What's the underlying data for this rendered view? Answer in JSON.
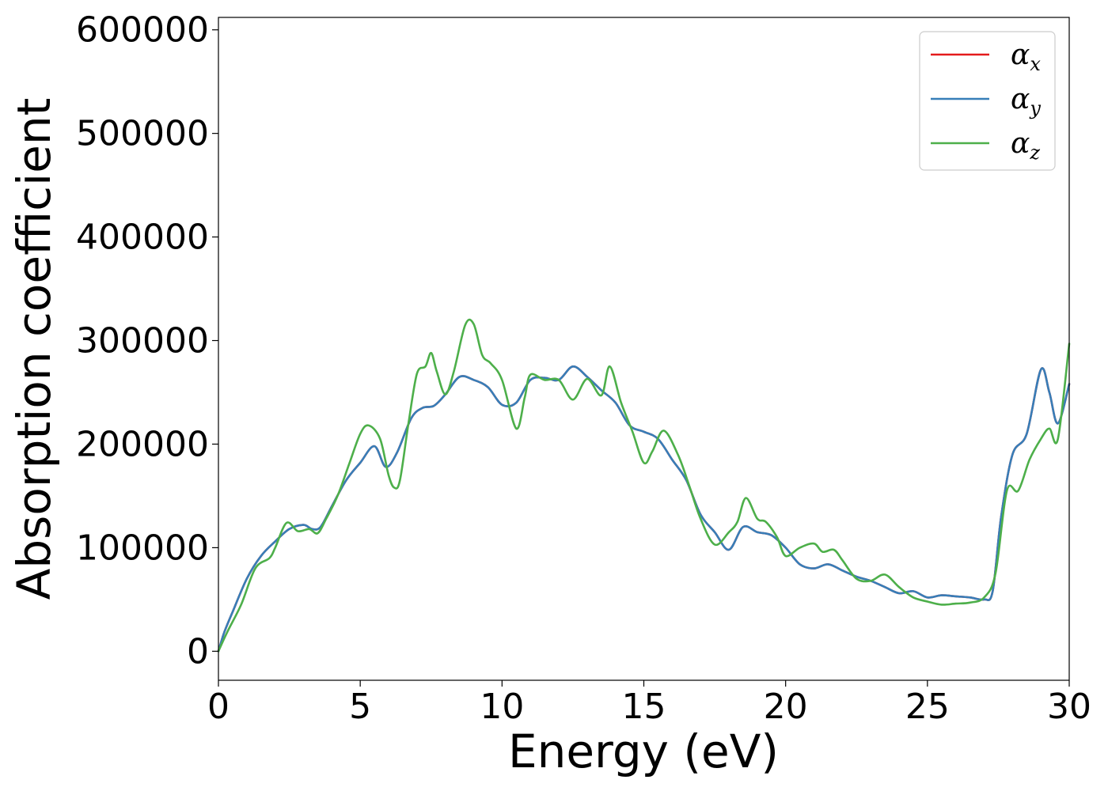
{
  "chart_data": {
    "type": "line",
    "xlabel": "Energy (eV)",
    "ylabel": "Absorption coefficient",
    "xlim": [
      0,
      30
    ],
    "ylim": [
      -28000,
      612000
    ],
    "xticks": [
      0,
      5,
      10,
      15,
      20,
      25,
      30
    ],
    "yticks": [
      0,
      100000,
      200000,
      300000,
      400000,
      500000,
      600000
    ],
    "grid": false,
    "legend_position": "top-right",
    "series": [
      {
        "name": "αx",
        "legend_symbol": "α",
        "legend_subscript": "x",
        "color": "#e41a1c",
        "x": [
          0,
          0.2,
          0.5,
          1.0,
          1.5,
          2.0,
          2.5,
          3.0,
          3.3,
          3.6,
          4.0,
          4.5,
          5.0,
          5.5,
          5.9,
          6.3,
          6.8,
          7.2,
          7.6,
          8.0,
          8.5,
          9.0,
          9.5,
          10.0,
          10.5,
          11.0,
          11.5,
          12.0,
          12.5,
          13.0,
          13.5,
          14.0,
          14.5,
          15.0,
          15.5,
          16.0,
          16.5,
          17.0,
          17.5,
          18.0,
          18.5,
          19.0,
          19.5,
          20.0,
          20.5,
          21.0,
          21.5,
          22.0,
          22.5,
          23.0,
          23.5,
          24.0,
          24.5,
          25.0,
          25.5,
          26.0,
          26.5,
          27.0,
          27.3,
          27.6,
          28.0,
          28.5,
          29.0,
          29.3,
          29.6,
          30.0
        ],
        "y": [
          0,
          18000,
          38000,
          70000,
          92000,
          106000,
          118000,
          122000,
          118000,
          120000,
          140000,
          165000,
          182000,
          198000,
          178000,
          192000,
          225000,
          235000,
          237000,
          248000,
          265000,
          262000,
          255000,
          238000,
          240000,
          262000,
          264000,
          262000,
          275000,
          265000,
          252000,
          240000,
          218000,
          212000,
          205000,
          185000,
          165000,
          132000,
          115000,
          98000,
          120000,
          115000,
          112000,
          100000,
          84000,
          80000,
          84000,
          78000,
          72000,
          68000,
          62000,
          56000,
          58000,
          52000,
          54000,
          53000,
          52000,
          50000,
          58000,
          130000,
          190000,
          210000,
          272000,
          250000,
          220000,
          258000
        ]
      },
      {
        "name": "αy",
        "legend_symbol": "α",
        "legend_subscript": "y",
        "color": "#377eb8",
        "x": [
          0,
          0.2,
          0.5,
          1.0,
          1.5,
          2.0,
          2.5,
          3.0,
          3.3,
          3.6,
          4.0,
          4.5,
          5.0,
          5.5,
          5.9,
          6.3,
          6.8,
          7.2,
          7.6,
          8.0,
          8.5,
          9.0,
          9.5,
          10.0,
          10.5,
          11.0,
          11.5,
          12.0,
          12.5,
          13.0,
          13.5,
          14.0,
          14.5,
          15.0,
          15.5,
          16.0,
          16.5,
          17.0,
          17.5,
          18.0,
          18.5,
          19.0,
          19.5,
          20.0,
          20.5,
          21.0,
          21.5,
          22.0,
          22.5,
          23.0,
          23.5,
          24.0,
          24.5,
          25.0,
          25.5,
          26.0,
          26.5,
          27.0,
          27.3,
          27.6,
          28.0,
          28.5,
          29.0,
          29.3,
          29.6,
          30.0
        ],
        "y": [
          0,
          18000,
          38000,
          70000,
          92000,
          106000,
          118000,
          122000,
          118000,
          120000,
          140000,
          165000,
          182000,
          198000,
          178000,
          192000,
          225000,
          235000,
          237000,
          248000,
          265000,
          262000,
          255000,
          238000,
          240000,
          262000,
          264000,
          262000,
          275000,
          265000,
          252000,
          240000,
          218000,
          212000,
          205000,
          185000,
          165000,
          132000,
          115000,
          98000,
          120000,
          115000,
          112000,
          100000,
          84000,
          80000,
          84000,
          78000,
          72000,
          68000,
          62000,
          56000,
          58000,
          52000,
          54000,
          53000,
          52000,
          50000,
          58000,
          130000,
          190000,
          210000,
          272000,
          250000,
          220000,
          258000
        ]
      },
      {
        "name": "αz",
        "legend_symbol": "α",
        "legend_subscript": "z",
        "color": "#4daf4a",
        "x": [
          0,
          0.3,
          0.8,
          1.3,
          1.8,
          2.0,
          2.4,
          2.8,
          3.2,
          3.5,
          3.8,
          4.2,
          4.6,
          5.0,
          5.3,
          5.7,
          6.0,
          6.2,
          6.4,
          6.7,
          7.0,
          7.3,
          7.5,
          7.7,
          8.0,
          8.3,
          8.7,
          9.0,
          9.3,
          9.6,
          10.0,
          10.5,
          10.8,
          11.0,
          11.5,
          12.0,
          12.5,
          13.0,
          13.5,
          13.8,
          14.2,
          14.6,
          15.0,
          15.3,
          15.7,
          16.2,
          16.6,
          17.0,
          17.5,
          18.0,
          18.3,
          18.6,
          19.0,
          19.3,
          19.7,
          20.0,
          20.5,
          21.0,
          21.3,
          21.7,
          22.0,
          22.5,
          23.0,
          23.5,
          24.0,
          24.5,
          25.0,
          25.5,
          26.0,
          26.5,
          27.0,
          27.4,
          27.8,
          28.2,
          28.6,
          29.0,
          29.3,
          29.6,
          30.0
        ],
        "y": [
          0,
          18000,
          45000,
          80000,
          90000,
          100000,
          124000,
          116000,
          118000,
          114000,
          128000,
          150000,
          180000,
          210000,
          218000,
          205000,
          170000,
          158000,
          165000,
          220000,
          268000,
          275000,
          288000,
          270000,
          248000,
          270000,
          315000,
          316000,
          286000,
          278000,
          262000,
          215000,
          245000,
          267000,
          262000,
          262000,
          243000,
          263000,
          247000,
          275000,
          240000,
          212000,
          182000,
          193000,
          213000,
          190000,
          160000,
          128000,
          103000,
          115000,
          125000,
          148000,
          128000,
          125000,
          110000,
          92000,
          100000,
          104000,
          96000,
          98000,
          88000,
          70000,
          68000,
          74000,
          62000,
          52000,
          48000,
          45000,
          46000,
          47000,
          52000,
          75000,
          155000,
          155000,
          185000,
          205000,
          215000,
          205000,
          297000
        ]
      }
    ]
  }
}
